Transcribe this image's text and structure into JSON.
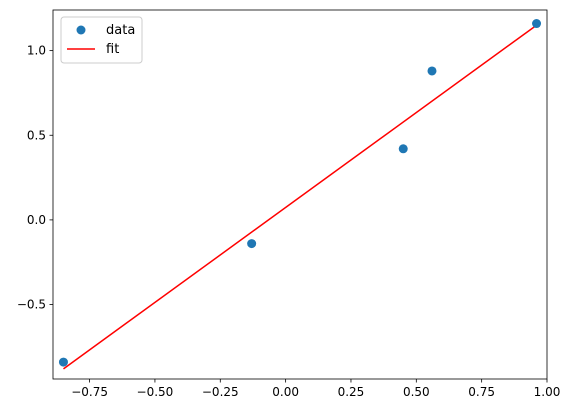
{
  "chart_data": {
    "type": "scatter",
    "title": "",
    "xlabel": "",
    "ylabel": "",
    "xlim": [
      -0.89,
      1.0
    ],
    "ylim": [
      -0.94,
      1.24
    ],
    "x_ticks": [
      -0.75,
      -0.5,
      -0.25,
      0.0,
      0.25,
      0.5,
      0.75,
      1.0
    ],
    "x_tick_labels": [
      "−0.75",
      "−0.50",
      "−0.25",
      "0.00",
      "0.25",
      "0.50",
      "0.75",
      "1.00"
    ],
    "y_ticks": [
      -0.5,
      0.0,
      0.5,
      1.0
    ],
    "y_tick_labels": [
      "−0.5",
      "0.0",
      "0.5",
      "1.0"
    ],
    "grid": false,
    "legend_position": "top-left",
    "series": [
      {
        "name": "data",
        "kind": "scatter",
        "color": "#1f77b4",
        "x": [
          -0.85,
          -0.13,
          0.45,
          0.56,
          0.96
        ],
        "y": [
          -0.84,
          -0.14,
          0.42,
          0.88,
          1.16
        ]
      },
      {
        "name": "fit",
        "kind": "line",
        "color": "#ff0000",
        "x": [
          -0.85,
          0.96
        ],
        "y": [
          -0.88,
          1.15
        ]
      }
    ]
  }
}
